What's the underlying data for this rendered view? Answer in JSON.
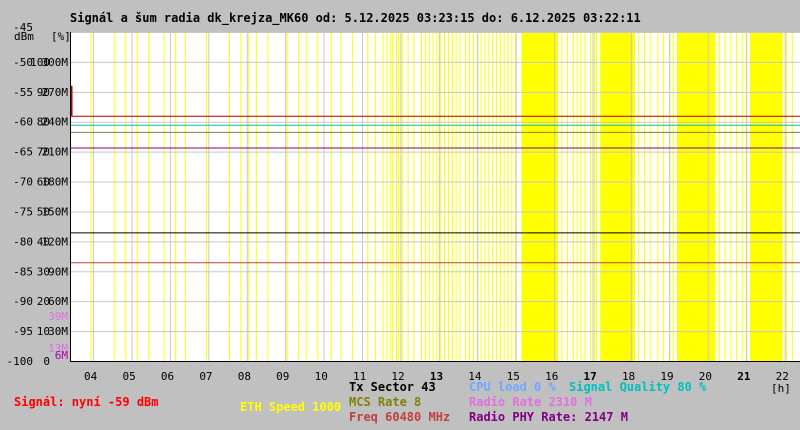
{
  "chart_data": {
    "type": "line",
    "title": "Signál a šum radia dk_krejza_MK60 od: 5.12.2025 03:23:15 do: 6.12.2025 03:22:11",
    "y_unit_labels": [
      "dBm",
      "[%]"
    ],
    "x_unit_label": "[h]",
    "y_ticks": [
      {
        "dbm": "-45",
        "pct": "",
        "rate": ""
      },
      {
        "dbm": "-50",
        "pct": "100",
        "rate": "300M"
      },
      {
        "dbm": "-55",
        "pct": "90",
        "rate": "270M"
      },
      {
        "dbm": "-60",
        "pct": "80",
        "rate": "240M"
      },
      {
        "dbm": "-65",
        "pct": "70",
        "rate": "210M"
      },
      {
        "dbm": "-70",
        "pct": "60",
        "rate": "180M"
      },
      {
        "dbm": "-75",
        "pct": "50",
        "rate": "150M"
      },
      {
        "dbm": "-80",
        "pct": "40",
        "rate": "120M"
      },
      {
        "dbm": "-85",
        "pct": "30",
        "rate": "90M"
      },
      {
        "dbm": "-90",
        "pct": "20",
        "rate": "60M"
      },
      {
        "dbm": "-95",
        "pct": "10",
        "rate": "30M"
      },
      {
        "dbm": "-100",
        "pct": "0",
        "rate": ""
      }
    ],
    "extra_rate_labels": [
      {
        "label": "39M",
        "dbm": -92.5,
        "color": "#e070e0"
      },
      {
        "label": "13M",
        "dbm": -97.8,
        "color": "#e070e0"
      },
      {
        "label": "6M",
        "dbm": -99,
        "color": "#aa00aa"
      }
    ],
    "ylim": [
      -100,
      -45
    ],
    "x_ticks": [
      "04",
      "05",
      "06",
      "07",
      "08",
      "09",
      "10",
      "11",
      "12",
      "13",
      "14",
      "15",
      "16",
      "17",
      "18",
      "19",
      "20",
      "21",
      "22"
    ],
    "bold_x_ticks": [
      "13",
      "17",
      "21"
    ],
    "xlim": [
      3.4,
      22.4
    ],
    "yellow_bands": [
      [
        15.15,
        16.1
      ],
      [
        17.2,
        18.1
      ],
      [
        19.2,
        20.2
      ],
      [
        21.1,
        21.95
      ]
    ],
    "yellow_lines": [
      3.95,
      4.55,
      4.85,
      5.15,
      5.45,
      5.85,
      6.15,
      6.4,
      6.95,
      7.55,
      7.85,
      8.05,
      8.25,
      8.55,
      9.05,
      9.35,
      9.55,
      9.85,
      10.2,
      10.45,
      10.75,
      11.15,
      11.35,
      11.55,
      11.65,
      11.75,
      11.8,
      11.9,
      11.95,
      12.05,
      12.2,
      12.35,
      12.55,
      12.65,
      12.75,
      12.85,
      12.95,
      13.05,
      13.15,
      13.25,
      13.35,
      13.45,
      13.55,
      13.7,
      13.8,
      13.9,
      14.0,
      14.1,
      14.2,
      14.3,
      14.4,
      14.5,
      14.6,
      14.7,
      14.8,
      14.9,
      15.0,
      16.2,
      16.35,
      16.5,
      16.6,
      16.7,
      16.8,
      16.95,
      17.05,
      17.1,
      18.2,
      18.35,
      18.5,
      18.7,
      18.85,
      19.0,
      19.1,
      20.3,
      20.45,
      20.6,
      20.75,
      20.9,
      21.0,
      22.05,
      22.2
    ],
    "series": [
      {
        "name": "Signál",
        "color": "#aa0000",
        "y": -59,
        "start_spike": -54
      },
      {
        "name": "Signal Quality",
        "color": "#00c0c0",
        "y": -60.5
      },
      {
        "name": "MCS Rate",
        "color": "#808040",
        "y": -61.7
      },
      {
        "name": "Radio PHY Rate",
        "color": "#800080",
        "y": -64.3
      },
      {
        "name": "Tx Sector",
        "color": "#000000",
        "y": -78.5
      },
      {
        "name": "Freq",
        "color": "#c04040",
        "y": -83.5
      }
    ],
    "grid": true
  },
  "legend": {
    "signal": {
      "text": "Signál: nyní -59 dBm",
      "color": "#ff0000"
    },
    "eth_speed": {
      "text": "ETH Speed 1000",
      "color": "#ffff00"
    },
    "tx_sector": {
      "text": "Tx Sector 43",
      "color": "#000000"
    },
    "mcs_rate": {
      "text": "MCS Rate 8",
      "color": "#808000"
    },
    "freq": {
      "text": "Freq 60480 MHz",
      "color": "#c04040"
    },
    "cpu_load": {
      "text": "CPU load 0 %",
      "color": "#6fa8ff"
    },
    "signal_quality": {
      "text": "Signal Quality 80 %",
      "color": "#00c0c0"
    },
    "radio_rate": {
      "text": "Radio Rate 2310 M",
      "color": "#e070e0"
    },
    "radio_phy_rate": {
      "text": "Radio PHY Rate: 2147 M",
      "color": "#800080"
    }
  }
}
